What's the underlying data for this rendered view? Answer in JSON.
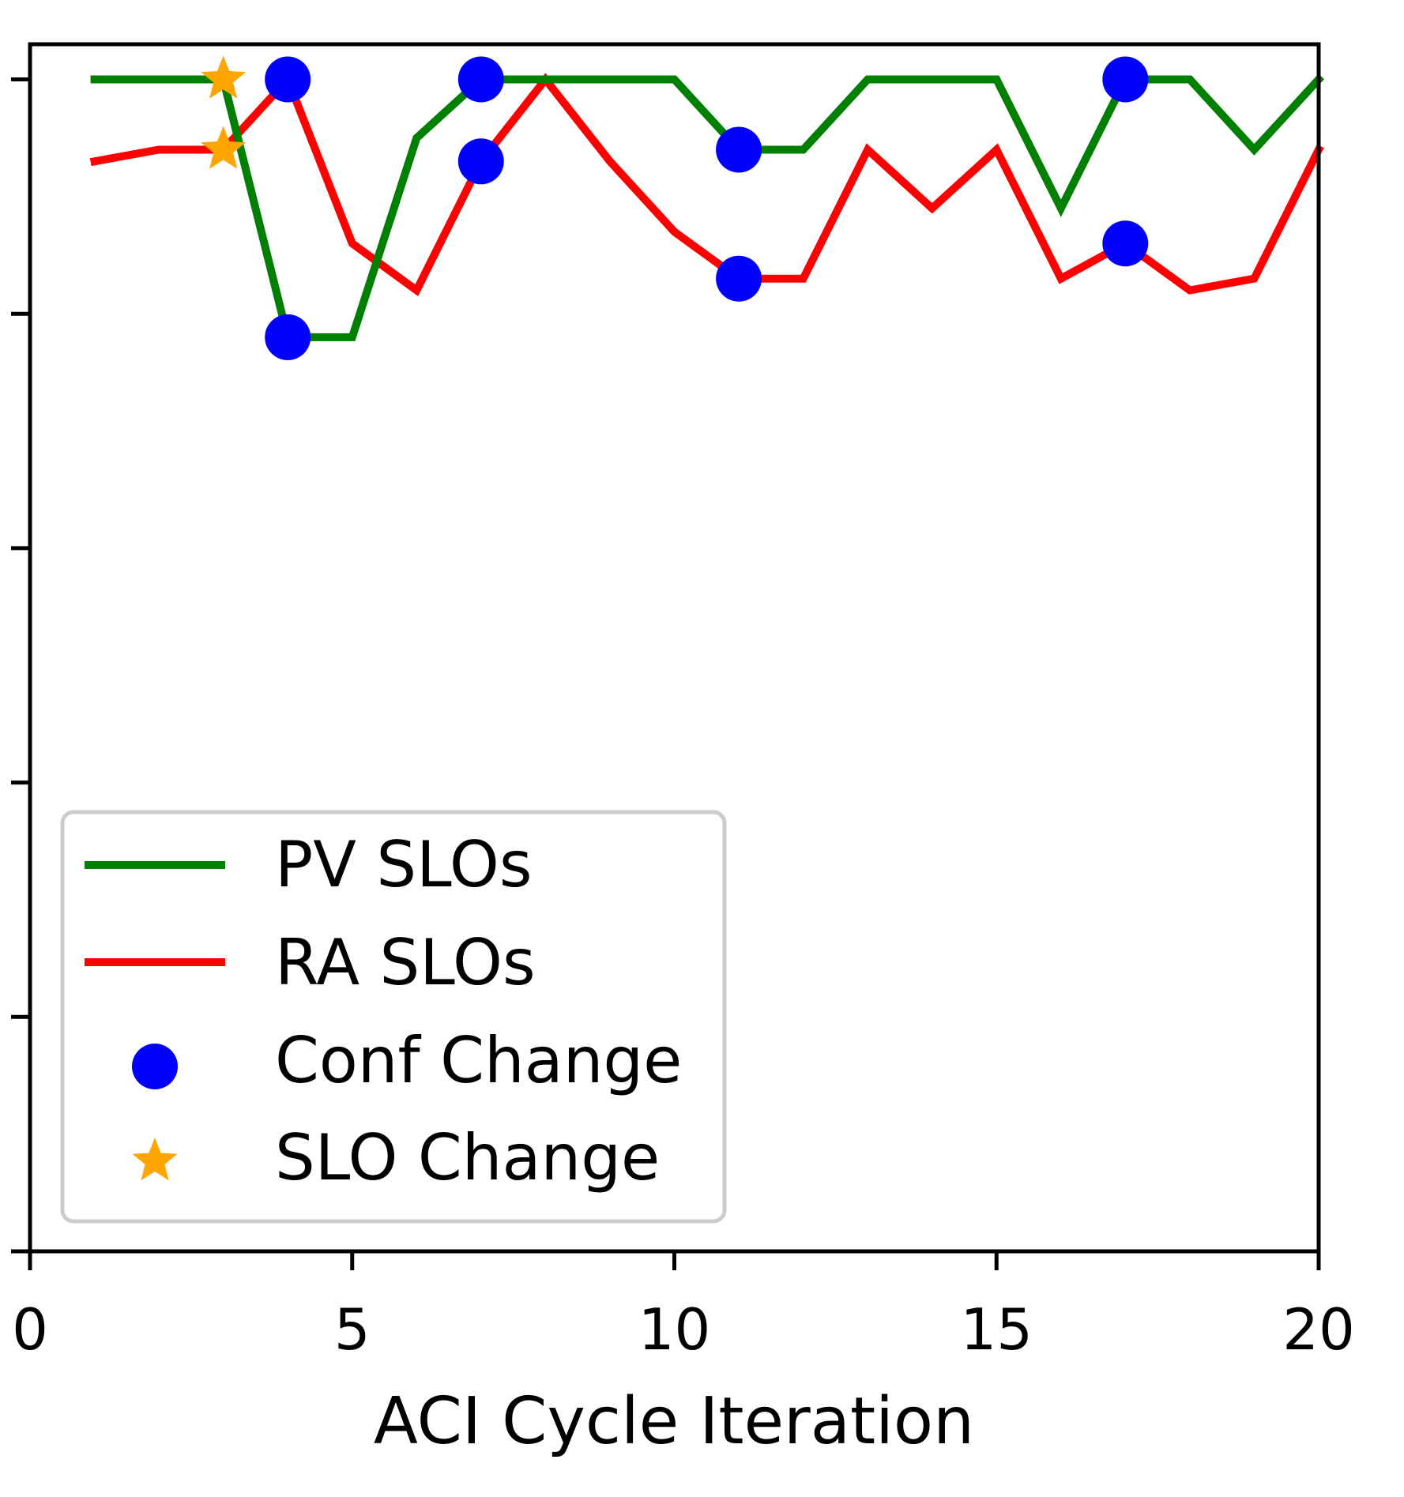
{
  "chart_data": {
    "type": "line",
    "title": "",
    "xlabel": "ACI Cycle Iteration",
    "ylabel": "",
    "xlim": [
      0,
      20
    ],
    "ylim": [
      0,
      1.03
    ],
    "x_ticks": [
      0,
      5,
      10,
      15,
      20
    ],
    "x_tick_labels": [
      "0",
      "5",
      "10",
      "15",
      "20"
    ],
    "y_ticks": [
      0.0,
      0.2,
      0.4,
      0.6,
      0.8,
      1.0
    ],
    "y_tick_labels_shown": false,
    "grid": false,
    "legend_position": "lower-left",
    "series": [
      {
        "name": "PV SLOs",
        "kind": "line",
        "color": "#008000",
        "x": [
          1,
          2,
          3,
          4,
          5,
          6,
          7,
          8,
          9,
          10,
          11,
          12,
          13,
          14,
          15,
          16,
          17,
          18,
          19,
          20
        ],
        "y": [
          1.0,
          1.0,
          1.0,
          0.78,
          0.78,
          0.95,
          1.0,
          1.0,
          1.0,
          1.0,
          0.94,
          0.94,
          1.0,
          1.0,
          1.0,
          0.89,
          1.0,
          1.0,
          0.94,
          1.0
        ]
      },
      {
        "name": "RA SLOs",
        "kind": "line",
        "color": "#ff0000",
        "x": [
          1,
          2,
          3,
          4,
          5,
          6,
          7,
          8,
          9,
          10,
          11,
          12,
          13,
          14,
          15,
          16,
          17,
          18,
          19,
          20
        ],
        "y": [
          0.93,
          0.94,
          0.94,
          1.0,
          0.86,
          0.82,
          0.93,
          1.0,
          0.93,
          0.87,
          0.83,
          0.83,
          0.94,
          0.89,
          0.94,
          0.83,
          0.86,
          0.82,
          0.83,
          0.94
        ]
      },
      {
        "name": "Conf Change",
        "kind": "scatter",
        "marker": "circle",
        "color": "#0000ff",
        "points": [
          {
            "x": 4,
            "y": 1.0
          },
          {
            "x": 4,
            "y": 0.78
          },
          {
            "x": 7,
            "y": 1.0
          },
          {
            "x": 7,
            "y": 0.93
          },
          {
            "x": 11,
            "y": 0.94
          },
          {
            "x": 11,
            "y": 0.83
          },
          {
            "x": 17,
            "y": 1.0
          },
          {
            "x": 17,
            "y": 0.86
          }
        ]
      },
      {
        "name": "SLO Change",
        "kind": "scatter",
        "marker": "star",
        "color": "#ffa500",
        "points": [
          {
            "x": 3,
            "y": 1.0
          },
          {
            "x": 3,
            "y": 0.94
          }
        ]
      }
    ]
  }
}
